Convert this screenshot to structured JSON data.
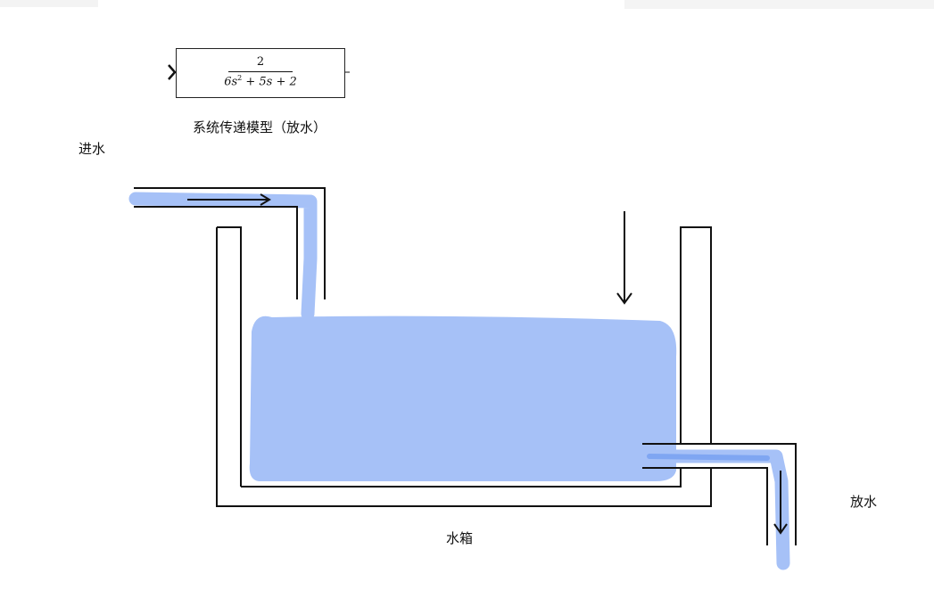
{
  "transfer_function": {
    "numerator": "2",
    "denominator_a": "6s",
    "denominator_exp": "2",
    "denominator_b": " + 5s + 2"
  },
  "labels": {
    "model_caption": "系统传递模型（放水）",
    "inflow": "进水",
    "outflow": "放水",
    "tank": "水箱"
  },
  "colors": {
    "water": "#a6c1f7",
    "water_dark": "#7fa6f2",
    "line": "#111111"
  }
}
